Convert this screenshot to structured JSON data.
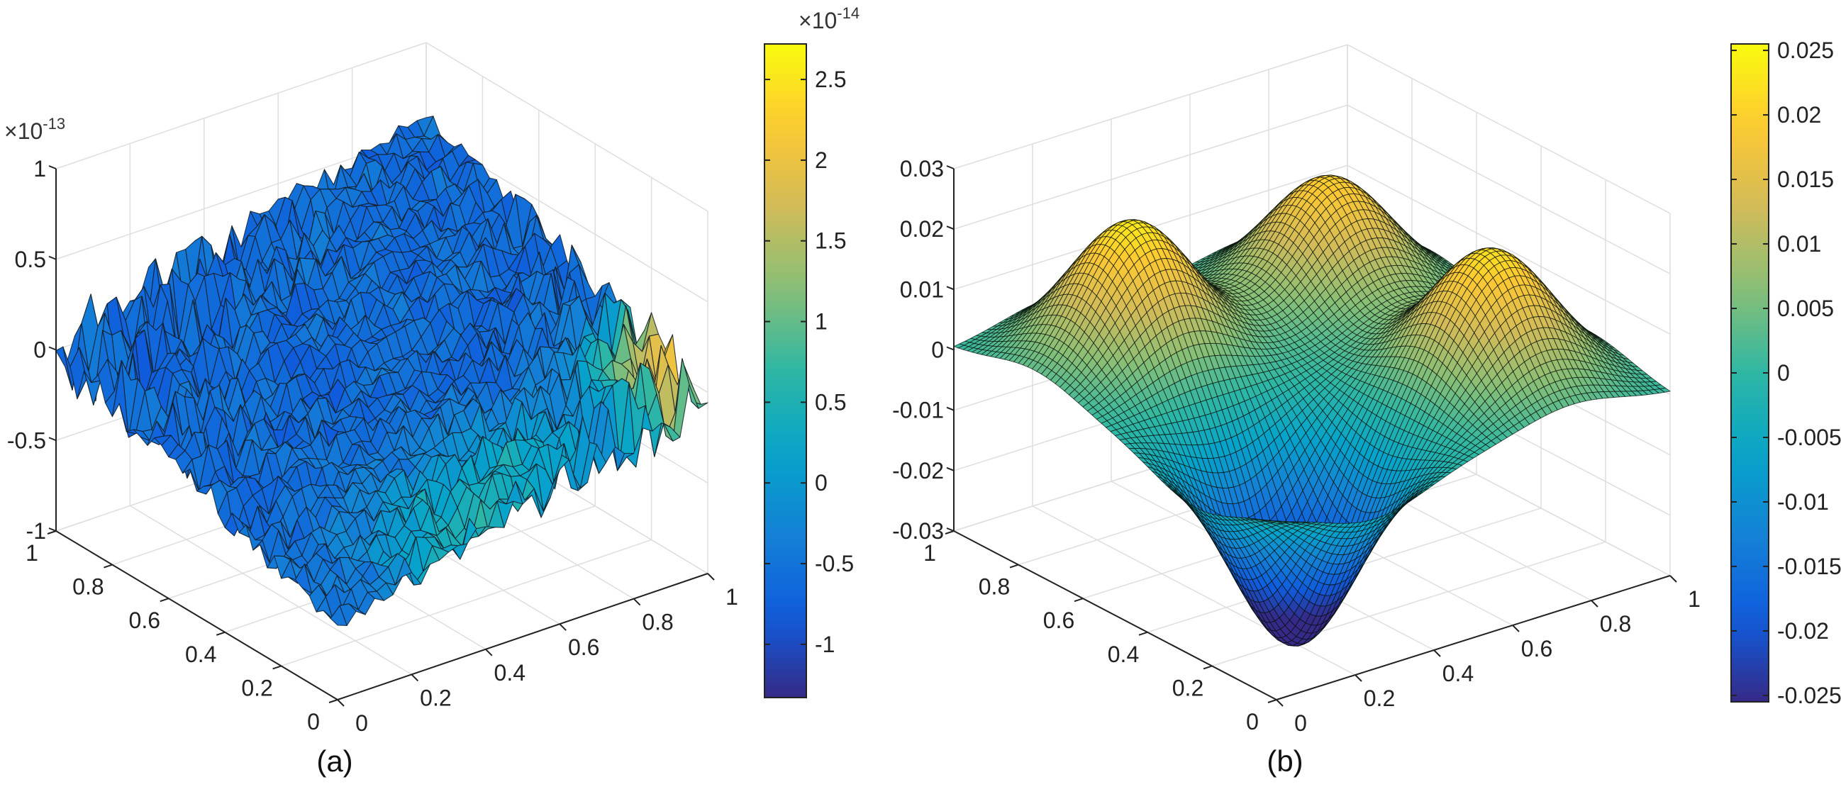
{
  "chart_data": [
    {
      "type": "surface",
      "caption": "(a)",
      "x_ticks": [
        0,
        0.2,
        0.4,
        0.6,
        0.8,
        1
      ],
      "y_ticks": [
        0,
        0.2,
        0.4,
        0.6,
        0.8,
        1
      ],
      "xlim": [
        0,
        1
      ],
      "ylim": [
        0,
        1
      ],
      "z_ticks": [
        -1,
        -0.5,
        0,
        0.5,
        1
      ],
      "zlim": [
        -1,
        1
      ],
      "z_multiplier": {
        "times": "×",
        "base": "10",
        "exp": "-13"
      },
      "surface_model": {
        "description_values": "noisy error surface, roughly tilted plane (low at x=0,y=0, high at x=1,y=1)",
        "corner_z": {
          "x0_y0": -0.6,
          "x1_y0": 0.0,
          "x0_y1": 0.0,
          "x1_y1": 0.6
        },
        "noise_amplitude": 0.12,
        "grid_n": 40
      },
      "colorbar": {
        "ticks": [
          -1,
          -0.5,
          0,
          0.5,
          1,
          1.5,
          2,
          2.5
        ],
        "clim": [
          -1.33,
          2.72
        ],
        "multiplier": {
          "times": "×",
          "base": "10",
          "exp": "-14"
        },
        "colormap": "parula"
      },
      "grid": true
    },
    {
      "type": "surface",
      "caption": "(b)",
      "x_ticks": [
        0,
        0.2,
        0.4,
        0.6,
        0.8,
        1
      ],
      "y_ticks": [
        0,
        0.2,
        0.4,
        0.6,
        0.8,
        1
      ],
      "xlim": [
        0,
        1
      ],
      "ylim": [
        0,
        1
      ],
      "z_ticks": [
        -0.03,
        -0.02,
        -0.01,
        0,
        0.01,
        0.02,
        0.03
      ],
      "zlim": [
        -0.03,
        0.03
      ],
      "surface_model": {
        "bumps": [
          {
            "x": 0.25,
            "y": 0.25,
            "amplitude": -0.033
          },
          {
            "x": 0.25,
            "y": 0.75,
            "amplitude": 0.023
          },
          {
            "x": 0.75,
            "y": 0.25,
            "amplitude": 0.022
          },
          {
            "x": 0.75,
            "y": 0.75,
            "amplitude": 0.02
          }
        ],
        "bump_sigma": 0.13,
        "grid_n": 70
      },
      "colorbar": {
        "ticks": [
          -0.025,
          -0.02,
          -0.015,
          -0.01,
          -0.005,
          0,
          0.005,
          0.01,
          0.015,
          0.02,
          0.025
        ],
        "clim": [
          -0.0255,
          0.0255
        ],
        "colormap": "parula"
      },
      "grid": true
    }
  ]
}
